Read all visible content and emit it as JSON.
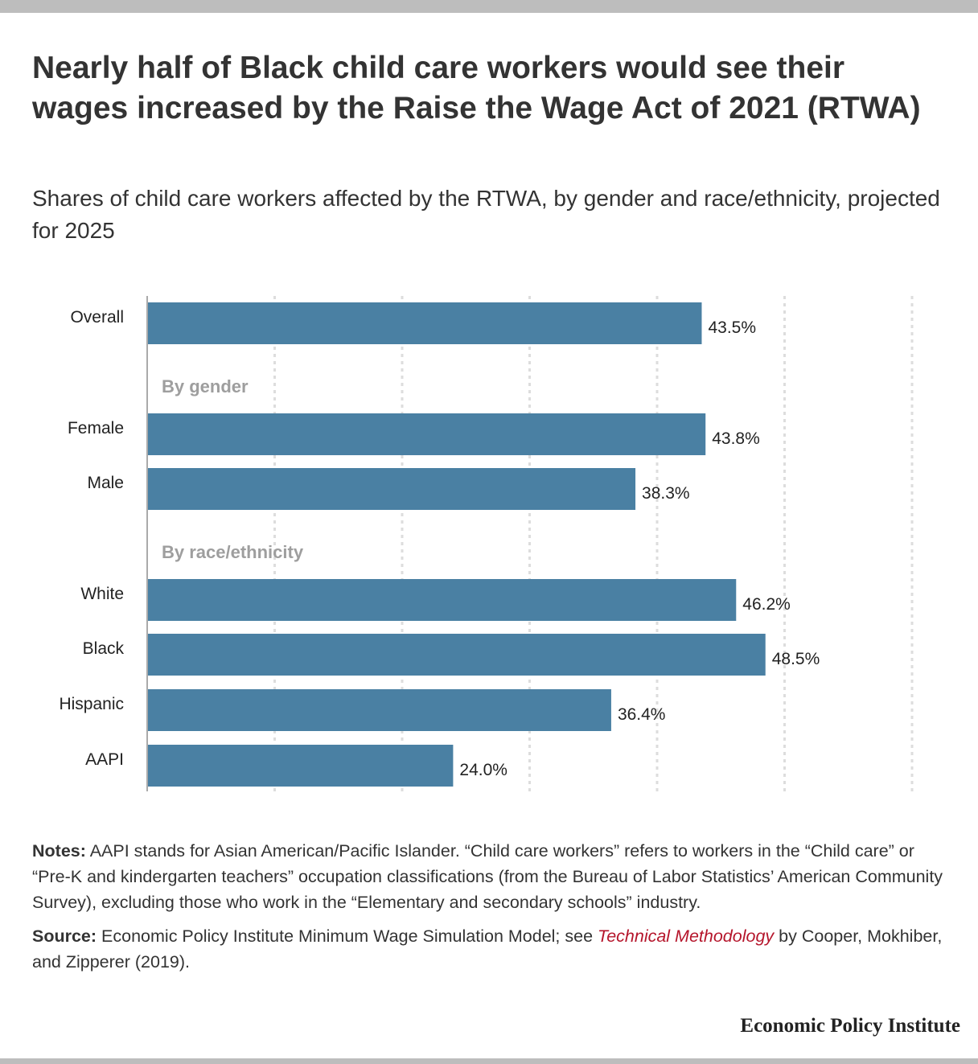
{
  "title": "Nearly half of Black child care workers would see their wages increased by the Raise the Wage Act of 2021 (RTWA)",
  "subtitle": "Shares of child care workers affected by the RTWA, by gender and race/ethnicity, projected for 2025",
  "chart_data": {
    "type": "bar",
    "orientation": "horizontal",
    "title": "Nearly half of Black child care workers would see their wages increased by the Raise the Wage Act of 2021 (RTWA)",
    "subtitle": "Shares of child care workers affected by the RTWA, by gender and race/ethnicity, projected for 2025",
    "groups": [
      {
        "heading": "",
        "categories": [
          "Overall"
        ],
        "values": [
          43.5
        ],
        "labels": [
          "43.5%"
        ]
      },
      {
        "heading": "By gender",
        "categories": [
          "Female",
          "Male"
        ],
        "values": [
          43.8,
          38.3
        ],
        "labels": [
          "43.8%",
          "38.3%"
        ]
      },
      {
        "heading": "By race/ethnicity",
        "categories": [
          "White",
          "Black",
          "Hispanic",
          "AAPI"
        ],
        "values": [
          46.2,
          48.5,
          36.4,
          24.0
        ],
        "labels": [
          "46.2%",
          "48.5%",
          "36.4%",
          "24.0%"
        ]
      }
    ],
    "xlim": [
      0,
      60
    ],
    "grid": true,
    "bar_color": "#4a80a3"
  },
  "notes": {
    "label": "Notes:",
    "text": "AAPI stands for Asian American/Pacific Islander. “Child care workers” refers to workers in the “Child care” or “Pre-K and kindergarten teachers” occupation classifications (from the Bureau of Labor Statistics’ American Community Survey), excluding those who work in the “Elementary and secondary schools” industry."
  },
  "source": {
    "label": "Source:",
    "text_before": "Economic Policy Institute Minimum Wage Simulation Model; see",
    "link": "Technical Methodology",
    "text_after": "by Cooper, Mokhiber, and Zipperer (2019)."
  },
  "brand": "Economic Policy Institute"
}
